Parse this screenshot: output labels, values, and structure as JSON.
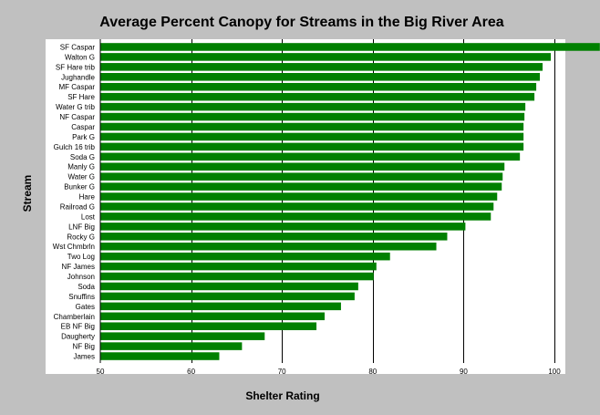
{
  "chart_data": {
    "type": "bar",
    "orientation": "horizontal",
    "title": "Average Percent Canopy for Streams in the Big River Area",
    "xlabel": "Shelter Rating",
    "ylabel": "Stream",
    "xlim": [
      50,
      100
    ],
    "xticks": [
      50,
      60,
      70,
      80,
      90,
      100
    ],
    "grid": true,
    "bar_color": "#008000",
    "plot_bg": "#ffffff",
    "categories": [
      "SF Caspar",
      "Walton G",
      "SF Hare trib",
      "Jughandle",
      "MF Caspar",
      "SF Hare",
      "Water G trib",
      "NF Caspar",
      "Caspar",
      "Park G",
      "Gulch 16 trib",
      "Soda G",
      "Manly G",
      "Water G",
      "Bunker G",
      "Hare",
      "Railroad G",
      "Lost",
      "LNF Big",
      "Rocky G",
      "Wst Chmbrln",
      "Two Log",
      "NF James",
      "Johnson",
      "Soda",
      "Snuffins",
      "Gates",
      "Chamberlain",
      "EB NF Big",
      "Daugherty",
      "NF Big",
      "James"
    ],
    "values": [
      105,
      99.6,
      98.7,
      98.4,
      98.0,
      97.8,
      96.8,
      96.7,
      96.6,
      96.6,
      96.6,
      96.2,
      94.5,
      94.3,
      94.2,
      93.7,
      93.3,
      93.0,
      90.2,
      88.2,
      87.0,
      81.9,
      80.4,
      80.1,
      78.4,
      78.0,
      76.5,
      74.7,
      73.8,
      68.1,
      65.6,
      63.1
    ]
  }
}
